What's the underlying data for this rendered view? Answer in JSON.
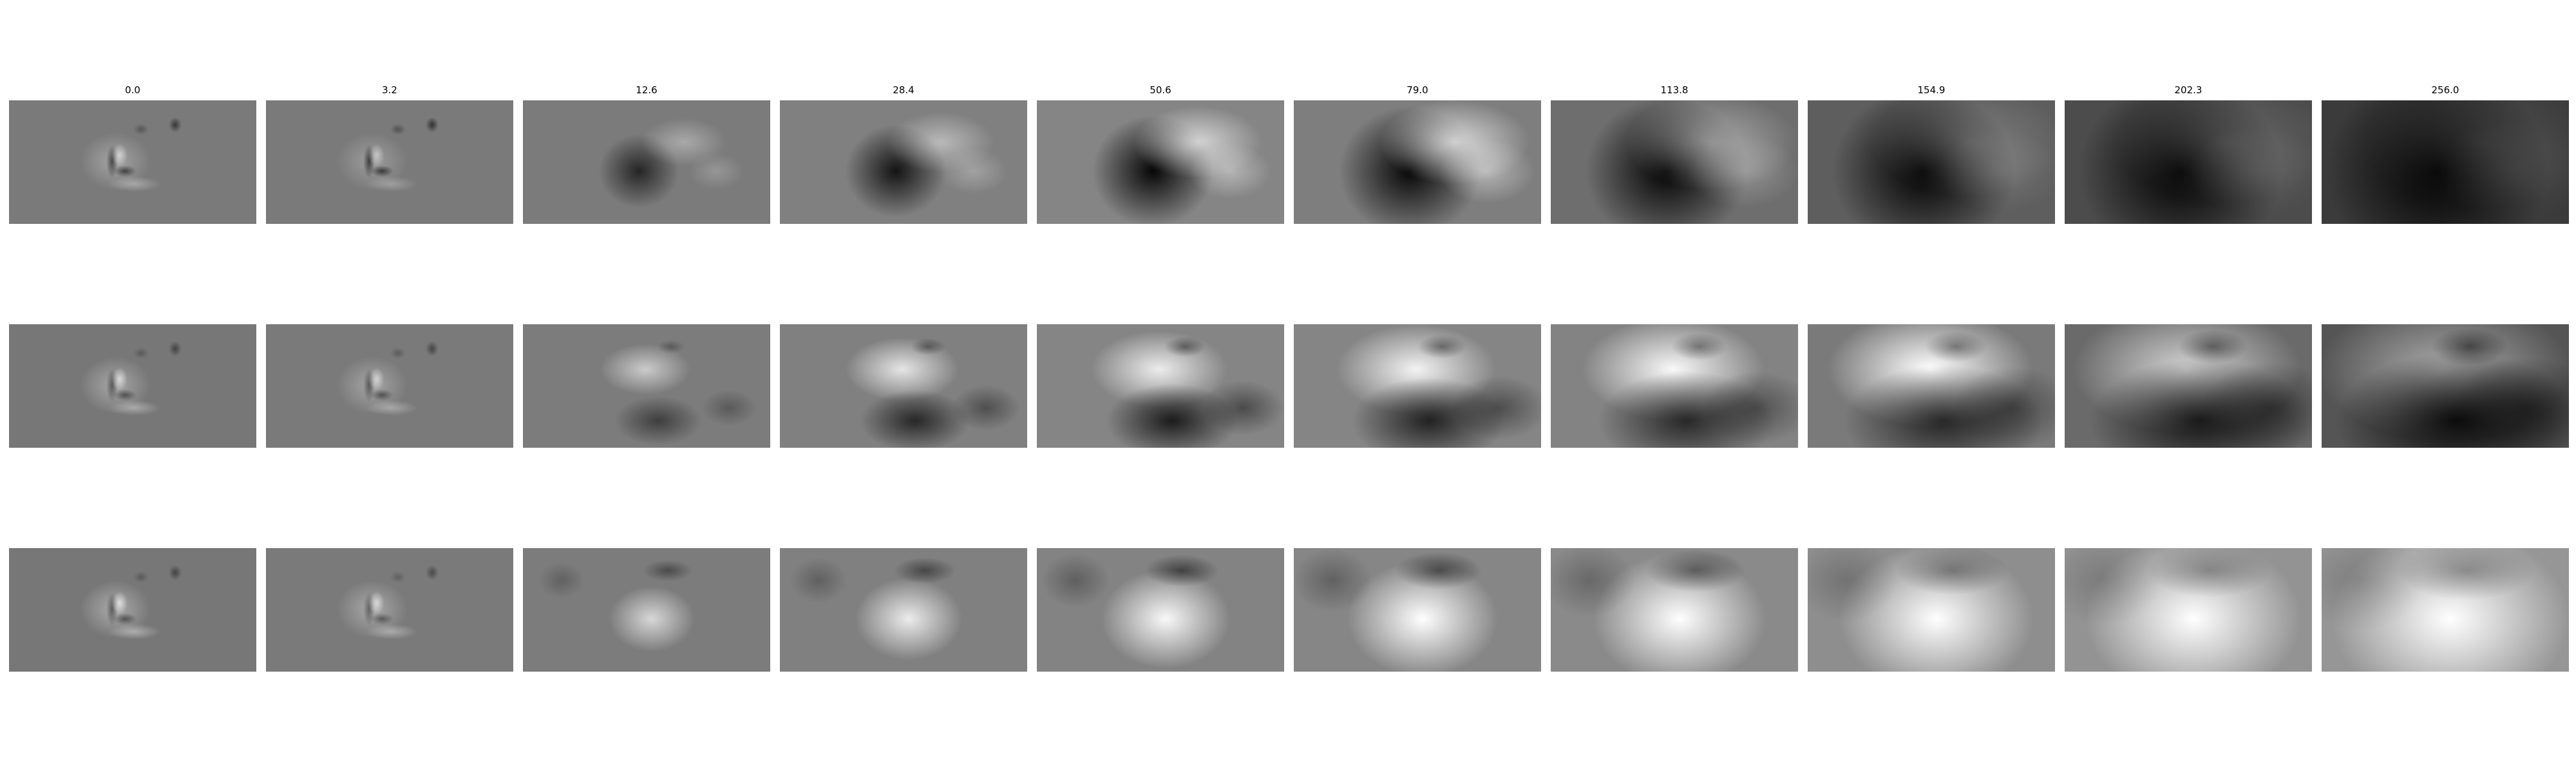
{
  "column_titles": [
    "0.0",
    "3.2",
    "12.6",
    "28.4",
    "50.6",
    "79.0",
    "113.8",
    "154.9",
    "202.3",
    "256.0"
  ],
  "rows": [
    {
      "row": 1,
      "trend": "blob becomes darker with increasing scale",
      "tones": [
        {
          "bg": "#7a7a7a",
          "light": 0.55,
          "dark": 0.55,
          "sharp": true
        },
        {
          "bg": "#7a7a7a",
          "light": 0.45,
          "dark": 0.6,
          "sharp": true
        },
        {
          "bg": "#7b7b7b",
          "light": 0.35,
          "dark": 0.7,
          "sharp": false
        },
        {
          "bg": "#808080",
          "light": 0.45,
          "dark": 0.85,
          "sharp": false
        },
        {
          "bg": "#858585",
          "light": 0.65,
          "dark": 0.95,
          "sharp": false
        },
        {
          "bg": "#7e7e7e",
          "light": 0.7,
          "dark": 0.95,
          "sharp": false
        },
        {
          "bg": "#6e6e6e",
          "light": 0.4,
          "dark": 0.98,
          "sharp": false
        },
        {
          "bg": "#5e5e5e",
          "light": 0.2,
          "dark": 1.0,
          "sharp": false
        },
        {
          "bg": "#4c4c4c",
          "light": 0.15,
          "dark": 1.0,
          "sharp": false
        },
        {
          "bg": "#3b3b3b",
          "light": 0.1,
          "dark": 1.0,
          "sharp": false
        }
      ]
    },
    {
      "row": 2,
      "trend": "bright band forms above dark region",
      "tones": [
        {
          "bg": "#777777",
          "light": 0.6,
          "dark": 0.45,
          "sharp": true
        },
        {
          "bg": "#7a7a7a",
          "light": 0.55,
          "dark": 0.45,
          "sharp": true
        },
        {
          "bg": "#7c7c7c",
          "light": 0.6,
          "dark": 0.5,
          "sharp": false
        },
        {
          "bg": "#808080",
          "light": 0.8,
          "dark": 0.7,
          "sharp": false
        },
        {
          "bg": "#858585",
          "light": 0.85,
          "dark": 0.8,
          "sharp": false
        },
        {
          "bg": "#858585",
          "light": 0.9,
          "dark": 0.75,
          "sharp": false
        },
        {
          "bg": "#838383",
          "light": 0.95,
          "dark": 0.7,
          "sharp": false
        },
        {
          "bg": "#7a7a7a",
          "light": 1.0,
          "dark": 0.7,
          "sharp": false
        },
        {
          "bg": "#6a6a6a",
          "light": 0.7,
          "dark": 0.8,
          "sharp": false
        },
        {
          "bg": "#555555",
          "light": 0.5,
          "dark": 0.9,
          "sharp": false
        }
      ]
    },
    {
      "row": 3,
      "trend": "blob becomes brighter with increasing scale",
      "tones": [
        {
          "bg": "#777777",
          "light": 0.65,
          "dark": 0.45,
          "sharp": true
        },
        {
          "bg": "#7a7a7a",
          "light": 0.6,
          "dark": 0.4,
          "sharp": true
        },
        {
          "bg": "#7c7c7c",
          "light": 0.7,
          "dark": 0.4,
          "sharp": false
        },
        {
          "bg": "#808080",
          "light": 0.85,
          "dark": 0.45,
          "sharp": false
        },
        {
          "bg": "#838383",
          "light": 0.95,
          "dark": 0.5,
          "sharp": false
        },
        {
          "bg": "#868686",
          "light": 1.0,
          "dark": 0.5,
          "sharp": false
        },
        {
          "bg": "#8a8a8a",
          "light": 1.0,
          "dark": 0.45,
          "sharp": false
        },
        {
          "bg": "#8e8e8e",
          "light": 1.0,
          "dark": 0.35,
          "sharp": false
        },
        {
          "bg": "#939393",
          "light": 1.0,
          "dark": 0.3,
          "sharp": false
        },
        {
          "bg": "#969696",
          "light": 1.0,
          "dark": 0.3,
          "sharp": false
        }
      ]
    }
  ]
}
